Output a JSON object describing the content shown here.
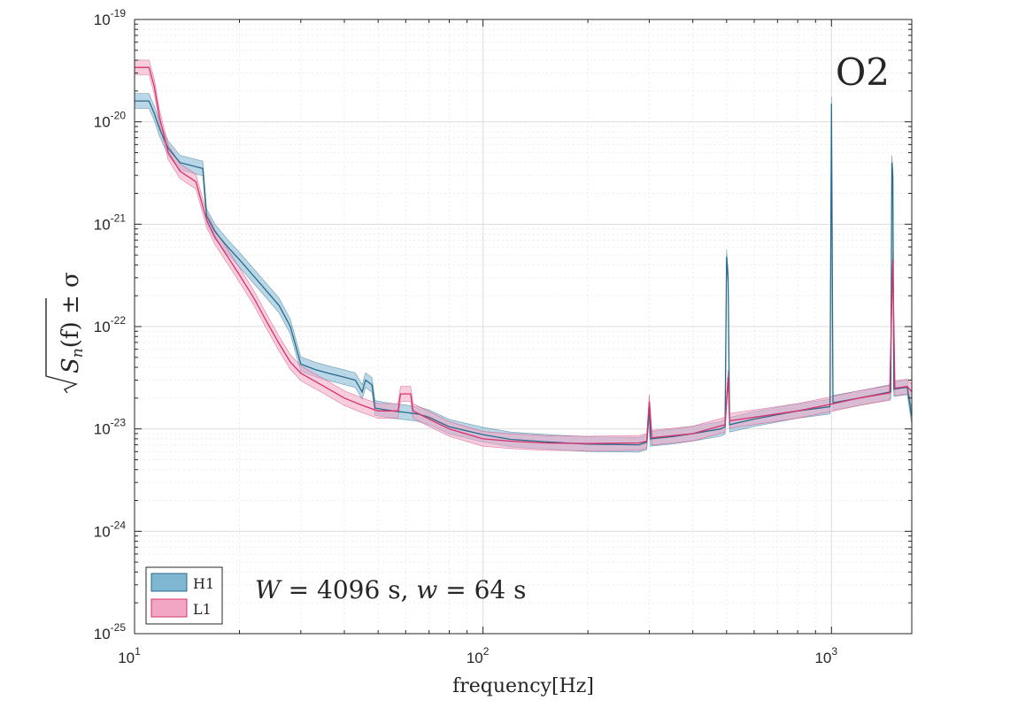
{
  "chart_data": {
    "type": "line",
    "scale": {
      "x": "log",
      "y": "log"
    },
    "xlim": [
      10,
      1700
    ],
    "ylim": [
      1e-25,
      1e-19
    ],
    "grid": true,
    "annotation": "O2",
    "note": {
      "W": "W",
      "eq1": " = 4096 s, ",
      "w": "w",
      "eq2": " = 64 s"
    },
    "xlabel": "frequency[Hz]",
    "ylabel": {
      "sym": "S",
      "sub": "n",
      "arg": "(f) ± σ"
    },
    "x_ticks": [
      {
        "base": "10",
        "exp": "1",
        "value": 10
      },
      {
        "base": "10",
        "exp": "2",
        "value": 100
      },
      {
        "base": "10",
        "exp": "3",
        "value": 1000
      }
    ],
    "y_ticks": [
      {
        "base": "10",
        "exp": "-19",
        "value": 1e-19
      },
      {
        "base": "10",
        "exp": "-20",
        "value": 1e-20
      },
      {
        "base": "10",
        "exp": "-21",
        "value": 1e-21
      },
      {
        "base": "10",
        "exp": "-22",
        "value": 1e-22
      },
      {
        "base": "10",
        "exp": "-23",
        "value": 1e-23
      },
      {
        "base": "10",
        "exp": "-24",
        "value": 1e-24
      },
      {
        "base": "10",
        "exp": "-25",
        "value": 1e-25
      }
    ],
    "legend_position": "bottom-left",
    "series": [
      {
        "name": "H1",
        "color": "#2a6b8c",
        "band_color": "#7fb6d2",
        "points": [
          [
            10,
            1.6e-20
          ],
          [
            11,
            1.6e-20
          ],
          [
            11.4,
            1.2e-20
          ],
          [
            11.8,
            8.5e-21
          ],
          [
            12.5,
            5.5e-21
          ],
          [
            13.5,
            4e-21
          ],
          [
            15.7,
            3.5e-21
          ],
          [
            16.1,
            1.2e-21
          ],
          [
            17,
            8.5e-22
          ],
          [
            18.5,
            6e-22
          ],
          [
            20,
            4.5e-22
          ],
          [
            22,
            3.1e-22
          ],
          [
            24,
            2.2e-22
          ],
          [
            26,
            1.6e-22
          ],
          [
            28,
            1e-22
          ],
          [
            30,
            4.3e-23
          ],
          [
            33,
            3.8e-23
          ],
          [
            36,
            3.5e-23
          ],
          [
            40,
            3.2e-23
          ],
          [
            43,
            3e-23
          ],
          [
            45,
            2.3e-23
          ],
          [
            46,
            3e-23
          ],
          [
            48,
            2.7e-23
          ],
          [
            49,
            1.6e-23
          ],
          [
            55,
            1.5e-23
          ],
          [
            60,
            1.45e-23
          ],
          [
            65,
            1.4e-23
          ],
          [
            70,
            1.3e-23
          ],
          [
            80,
            1.05e-23
          ],
          [
            100,
            8.8e-24
          ],
          [
            120,
            7.9e-24
          ],
          [
            150,
            7.5e-24
          ],
          [
            200,
            7.1e-24
          ],
          [
            280,
            7e-24
          ],
          [
            295,
            7.4e-24
          ],
          [
            300,
            1.6e-23
          ],
          [
            302,
            8e-24
          ],
          [
            350,
            8.4e-24
          ],
          [
            400,
            9e-24
          ],
          [
            480,
            1e-23
          ],
          [
            495,
            1.05e-23
          ],
          [
            500,
            4.8e-22
          ],
          [
            505,
            3e-22
          ],
          [
            510,
            1.1e-23
          ],
          [
            600,
            1.25e-23
          ],
          [
            800,
            1.5e-23
          ],
          [
            990,
            1.65e-23
          ],
          [
            1000,
            1.5e-20
          ],
          [
            1010,
            1.8e-23
          ],
          [
            1200,
            2e-23
          ],
          [
            1480,
            2.3e-23
          ],
          [
            1490,
            4e-21
          ],
          [
            1500,
            3e-21
          ],
          [
            1510,
            2.45e-23
          ],
          [
            1650,
            2.55e-23
          ],
          [
            1700,
            1.3e-23
          ]
        ]
      },
      {
        "name": "L1",
        "color": "#d6336c",
        "band_color": "#f2a6c4",
        "points": [
          [
            10,
            3.4e-20
          ],
          [
            11,
            3.4e-20
          ],
          [
            11.4,
            2.2e-20
          ],
          [
            11.8,
            1.1e-20
          ],
          [
            12.5,
            5e-21
          ],
          [
            13.5,
            3.3e-21
          ],
          [
            15,
            2.6e-21
          ],
          [
            16.1,
            1.1e-21
          ],
          [
            17,
            7.5e-22
          ],
          [
            18.5,
            4.8e-22
          ],
          [
            20,
            3.2e-22
          ],
          [
            22,
            1.9e-22
          ],
          [
            24,
            1.1e-22
          ],
          [
            26,
            6.8e-23
          ],
          [
            28,
            4.5e-23
          ],
          [
            30,
            3.5e-23
          ],
          [
            35,
            2.6e-23
          ],
          [
            40,
            2e-23
          ],
          [
            45,
            1.7e-23
          ],
          [
            50,
            1.5e-23
          ],
          [
            57,
            1.5e-23
          ],
          [
            58,
            2.2e-23
          ],
          [
            62,
            2.2e-23
          ],
          [
            63,
            1.5e-23
          ],
          [
            70,
            1.25e-23
          ],
          [
            80,
            1e-23
          ],
          [
            100,
            8e-24
          ],
          [
            120,
            7.6e-24
          ],
          [
            150,
            7.3e-24
          ],
          [
            200,
            7.2e-24
          ],
          [
            280,
            7.3e-24
          ],
          [
            295,
            7.6e-24
          ],
          [
            300,
            1.85e-23
          ],
          [
            305,
            8.2e-24
          ],
          [
            400,
            9e-24
          ],
          [
            495,
            1.1e-23
          ],
          [
            505,
            3.2e-23
          ],
          [
            510,
            1.2e-23
          ],
          [
            800,
            1.5e-23
          ],
          [
            1000,
            1.75e-23
          ],
          [
            1200,
            2e-23
          ],
          [
            1470,
            2.25e-23
          ],
          [
            1500,
            4.5e-22
          ],
          [
            1520,
            2.5e-23
          ],
          [
            1650,
            2.6e-23
          ],
          [
            1700,
            2.3e-23
          ]
        ]
      }
    ]
  }
}
